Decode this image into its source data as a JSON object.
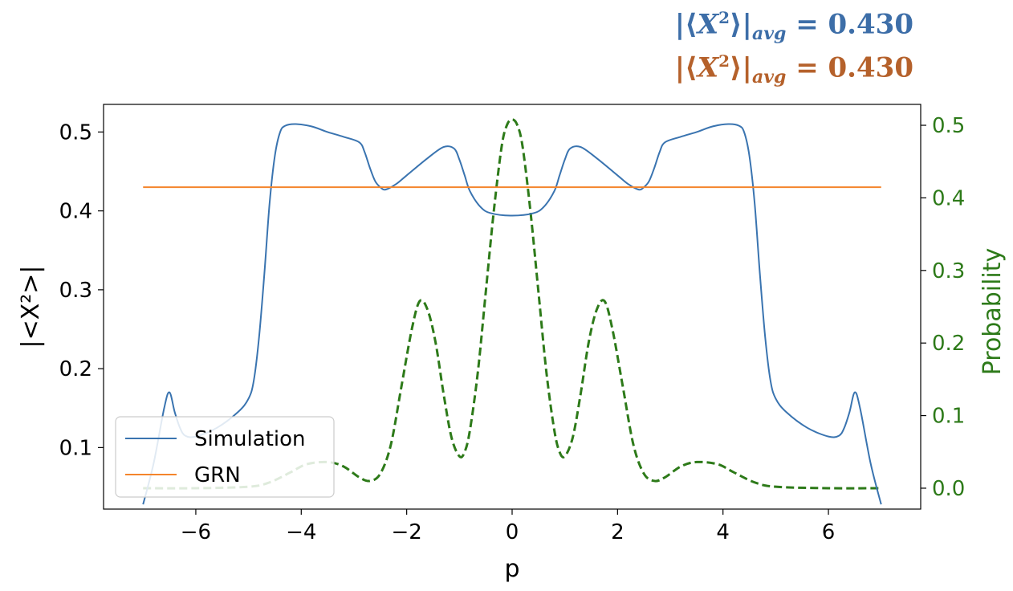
{
  "annotations": [
    {
      "text_pre": "|⟨",
      "var": "X",
      "exp": "2",
      "text_mid": "⟩|",
      "sub": "avg",
      "text_post": " = 0.430",
      "color": "#3d6ea8"
    },
    {
      "text_pre": "|⟨",
      "var": "X",
      "exp": "2",
      "text_mid": "⟩|",
      "sub": "avg",
      "text_post": " = 0.430",
      "color": "#b5612b"
    }
  ],
  "chart_data": {
    "type": "line",
    "xlabel": "p",
    "ylabel": "|<X²>|",
    "y2label": "Probability",
    "xlim": [
      -7.75,
      7.75
    ],
    "ylim": [
      0.022,
      0.535
    ],
    "y2lim": [
      -0.0288,
      0.5288
    ],
    "xticks": [
      -6,
      -4,
      -2,
      0,
      2,
      4,
      6
    ],
    "xtick_labels": [
      "−6",
      "−4",
      "−2",
      "0",
      "2",
      "4",
      "6"
    ],
    "yticks": [
      0.1,
      0.2,
      0.3,
      0.4,
      0.5
    ],
    "ytick_labels": [
      "0.1",
      "0.2",
      "0.3",
      "0.4",
      "0.5"
    ],
    "y2ticks": [
      0.0,
      0.1,
      0.2,
      0.3,
      0.4,
      0.5
    ],
    "y2tick_labels": [
      "0.0",
      "0.1",
      "0.2",
      "0.3",
      "0.4",
      "0.5"
    ],
    "grid": false,
    "legend_position": "lower-left",
    "series": [
      {
        "name": "Simulation",
        "axis": "left",
        "color": "#3a74b0",
        "style": "solid",
        "x": [
          -7.0,
          -6.8,
          -6.6,
          -6.5,
          -6.4,
          -6.3,
          -6.2,
          -6.0,
          -5.6,
          -5.2,
          -5.0,
          -4.9,
          -4.8,
          -4.7,
          -4.6,
          -4.5,
          -4.4,
          -4.3,
          -4.1,
          -3.8,
          -3.5,
          -3.2,
          -2.9,
          -2.8,
          -2.7,
          -2.6,
          -2.5,
          -2.4,
          -2.2,
          -2.0,
          -1.6,
          -1.3,
          -1.1,
          -1.0,
          -0.9,
          -0.8,
          -0.6,
          -0.4,
          0.0,
          0.4,
          0.6,
          0.8,
          0.9,
          1.0,
          1.1,
          1.3,
          1.6,
          2.0,
          2.2,
          2.4,
          2.5,
          2.6,
          2.7,
          2.8,
          2.9,
          3.2,
          3.5,
          3.8,
          4.1,
          4.3,
          4.4,
          4.5,
          4.6,
          4.7,
          4.8,
          4.9,
          5.0,
          5.2,
          5.6,
          6.0,
          6.2,
          6.3,
          6.4,
          6.5,
          6.6,
          6.8,
          7.0
        ],
        "y": [
          0.028,
          0.08,
          0.15,
          0.17,
          0.145,
          0.125,
          0.115,
          0.114,
          0.125,
          0.145,
          0.162,
          0.185,
          0.24,
          0.32,
          0.41,
          0.47,
          0.5,
          0.508,
          0.51,
          0.507,
          0.5,
          0.494,
          0.487,
          0.475,
          0.455,
          0.438,
          0.43,
          0.427,
          0.434,
          0.445,
          0.467,
          0.481,
          0.479,
          0.465,
          0.445,
          0.425,
          0.405,
          0.397,
          0.394,
          0.397,
          0.405,
          0.425,
          0.445,
          0.465,
          0.479,
          0.481,
          0.467,
          0.445,
          0.434,
          0.427,
          0.43,
          0.438,
          0.455,
          0.475,
          0.487,
          0.494,
          0.5,
          0.507,
          0.51,
          0.508,
          0.5,
          0.47,
          0.41,
          0.32,
          0.24,
          0.185,
          0.162,
          0.145,
          0.125,
          0.114,
          0.115,
          0.125,
          0.145,
          0.17,
          0.15,
          0.08,
          0.028
        ]
      },
      {
        "name": "GRN",
        "axis": "left",
        "color": "#f4852c",
        "style": "solid",
        "x": [
          -7.0,
          7.0
        ],
        "y": [
          0.43,
          0.43
        ]
      },
      {
        "name": "",
        "axis": "right",
        "color": "#2d7a19",
        "style": "dashed",
        "x": [
          -7.0,
          -6.0,
          -5.0,
          -4.6,
          -4.2,
          -3.9,
          -3.5,
          -3.2,
          -2.9,
          -2.7,
          -2.5,
          -2.3,
          -2.1,
          -1.9,
          -1.75,
          -1.6,
          -1.45,
          -1.3,
          -1.15,
          -1.0,
          -0.9,
          -0.8,
          -0.65,
          -0.5,
          -0.35,
          -0.2,
          -0.1,
          0.0,
          0.1,
          0.2,
          0.35,
          0.5,
          0.65,
          0.8,
          0.9,
          1.0,
          1.15,
          1.3,
          1.45,
          1.6,
          1.75,
          1.9,
          2.1,
          2.3,
          2.5,
          2.7,
          2.9,
          3.2,
          3.5,
          3.9,
          4.2,
          4.6,
          5.0,
          6.0,
          7.0
        ],
        "y": [
          0.0,
          0.0,
          0.002,
          0.008,
          0.022,
          0.033,
          0.036,
          0.03,
          0.015,
          0.01,
          0.02,
          0.06,
          0.14,
          0.22,
          0.258,
          0.245,
          0.2,
          0.13,
          0.07,
          0.044,
          0.05,
          0.08,
          0.16,
          0.27,
          0.38,
          0.47,
          0.5,
          0.508,
          0.5,
          0.47,
          0.38,
          0.27,
          0.16,
          0.08,
          0.05,
          0.044,
          0.07,
          0.13,
          0.2,
          0.245,
          0.258,
          0.22,
          0.14,
          0.06,
          0.02,
          0.01,
          0.015,
          0.03,
          0.036,
          0.033,
          0.022,
          0.008,
          0.002,
          0.0,
          0.0
        ]
      }
    ]
  }
}
